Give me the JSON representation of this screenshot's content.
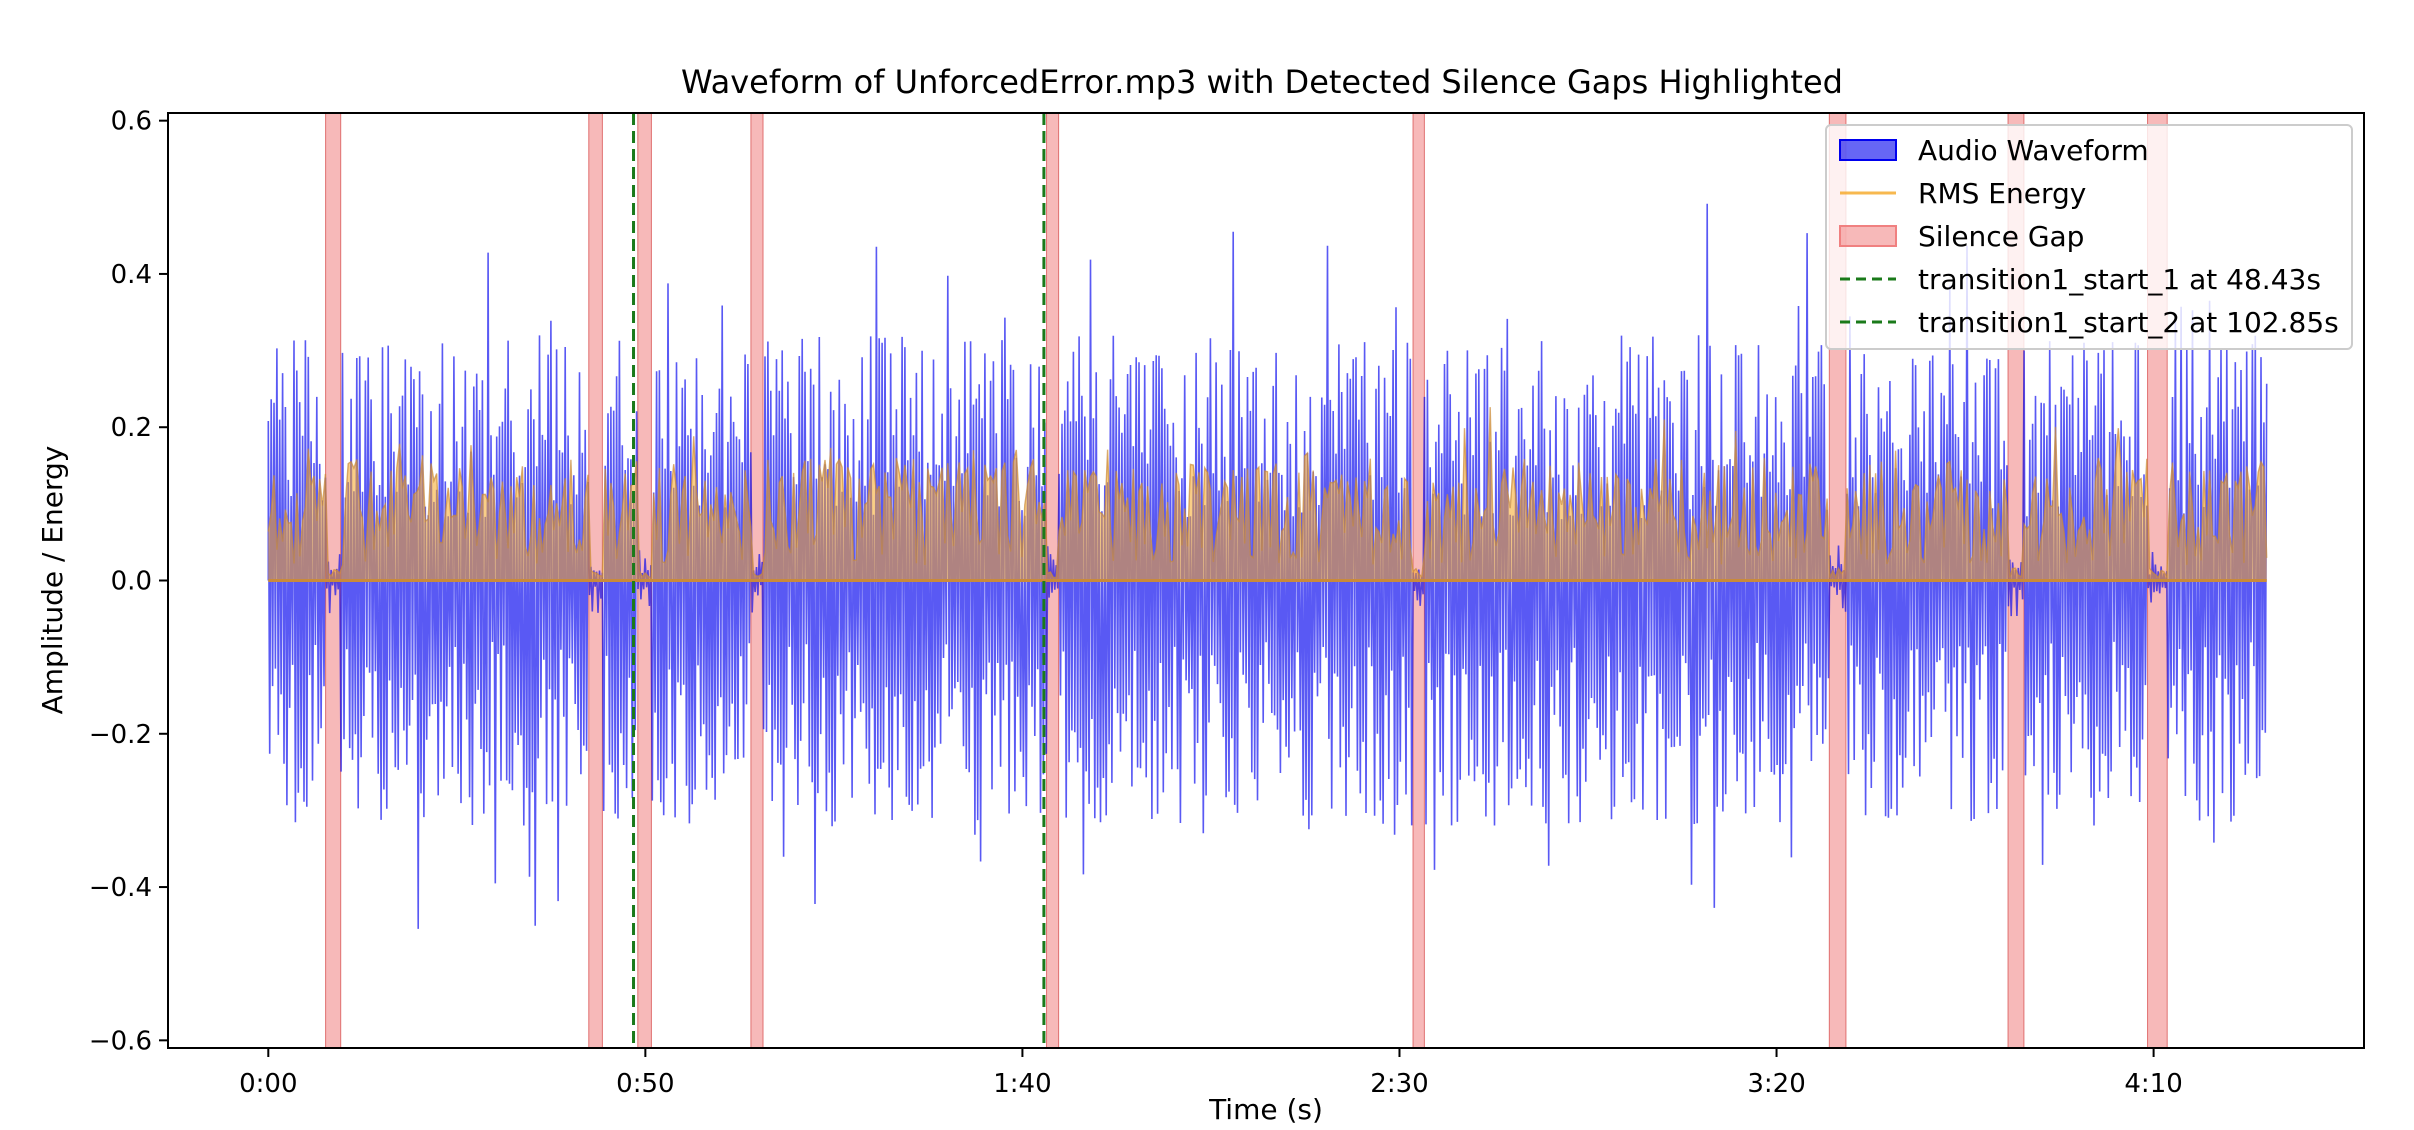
{
  "chart_data": {
    "type": "line",
    "title": "Waveform of UnforcedError.mp3 with Detected Silence Gaps Highlighted",
    "xlabel": "Time (s)",
    "ylabel": "Amplitude / Energy",
    "xlim": [
      -13.3,
      277.9
    ],
    "ylim": [
      -0.61,
      0.61
    ],
    "x_ticks": [
      {
        "value": 0,
        "label": "0:00"
      },
      {
        "value": 50,
        "label": "0:50"
      },
      {
        "value": 100,
        "label": "1:40"
      },
      {
        "value": 150,
        "label": "2:30"
      },
      {
        "value": 200,
        "label": "3:20"
      },
      {
        "value": 250,
        "label": "4:10"
      }
    ],
    "y_ticks": [
      {
        "value": 0.6,
        "label": "0.6"
      },
      {
        "value": 0.4,
        "label": "0.4"
      },
      {
        "value": 0.2,
        "label": "0.2"
      },
      {
        "value": 0.0,
        "label": "0.0"
      },
      {
        "value": -0.2,
        "label": "−0.2"
      },
      {
        "value": -0.4,
        "label": "−0.4"
      },
      {
        "value": -0.6,
        "label": "−0.6"
      }
    ],
    "duration_s": 265,
    "grid": false,
    "legend_position": "top-right",
    "colors": {
      "waveform": "#0000ee",
      "rms": "#f5a623",
      "silence": "#f08080",
      "transition": "#1a7a1a"
    },
    "series": [
      {
        "name": "Audio Waveform",
        "kind": "fill",
        "color": "#0000ee",
        "peak_amplitude": [
          -0.55,
          0.56
        ]
      },
      {
        "name": "RMS Energy",
        "kind": "line",
        "color": "#f5a623",
        "peak_value": 0.25
      }
    ],
    "silence_gaps": [
      {
        "start": 7.6,
        "end": 9.6
      },
      {
        "start": 42.5,
        "end": 44.3
      },
      {
        "start": 49.0,
        "end": 50.8
      },
      {
        "start": 64.0,
        "end": 65.6
      },
      {
        "start": 103.2,
        "end": 104.8
      },
      {
        "start": 151.8,
        "end": 153.3
      },
      {
        "start": 207.0,
        "end": 209.2
      },
      {
        "start": 230.7,
        "end": 232.8
      },
      {
        "start": 249.2,
        "end": 251.8
      }
    ],
    "transitions": [
      {
        "name": "transition1_start_1 at 48.43s",
        "x": 48.43
      },
      {
        "name": "transition1_start_2 at 102.85s",
        "x": 102.85
      }
    ],
    "legend": [
      {
        "label": "Audio Waveform",
        "kind": "patch",
        "color": "#0000ee"
      },
      {
        "label": "RMS Energy",
        "kind": "line",
        "color": "#f5a623"
      },
      {
        "label": "Silence Gap",
        "kind": "patch",
        "color": "#f08080"
      },
      {
        "label": "transition1_start_1 at 48.43s",
        "kind": "dashed",
        "color": "#1a7a1a"
      },
      {
        "label": "transition1_start_2 at 102.85s",
        "kind": "dashed",
        "color": "#1a7a1a"
      }
    ]
  }
}
